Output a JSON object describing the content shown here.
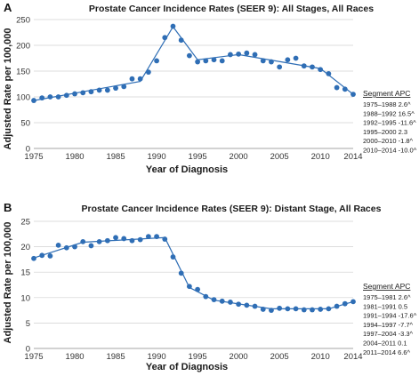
{
  "colors": {
    "series": "#2f6eb5",
    "grid": "#d0d0d0"
  },
  "chart_data": [
    {
      "type": "scatter",
      "panel_label": "A",
      "title": "Prostate Cancer Incidence Rates (SEER 9): All Stages, All Races",
      "xlabel": "Year of Diagnosis",
      "ylabel": "Adjusted Rate per 100,000",
      "xlim": [
        1975,
        2014
      ],
      "ylim": [
        0,
        250
      ],
      "xticks": [
        1975,
        1980,
        1985,
        1990,
        1995,
        2000,
        2005,
        2010,
        2014
      ],
      "yticks": [
        0,
        50,
        100,
        150,
        200,
        250
      ],
      "grid": true,
      "points": {
        "x": [
          1975,
          1976,
          1977,
          1978,
          1979,
          1980,
          1981,
          1982,
          1983,
          1984,
          1985,
          1986,
          1987,
          1988,
          1989,
          1990,
          1991,
          1992,
          1993,
          1994,
          1995,
          1996,
          1997,
          1998,
          1999,
          2000,
          2001,
          2002,
          2003,
          2004,
          2005,
          2006,
          2007,
          2008,
          2009,
          2010,
          2011,
          2012,
          2013,
          2014
        ],
        "y": [
          93,
          98,
          100,
          100,
          103,
          106,
          108,
          110,
          113,
          113,
          117,
          120,
          135,
          135,
          148,
          170,
          215,
          237,
          210,
          180,
          168,
          170,
          172,
          170,
          182,
          183,
          185,
          182,
          170,
          168,
          158,
          172,
          175,
          160,
          158,
          153,
          145,
          118,
          115,
          105
        ]
      },
      "trend": {
        "x": [
          1975,
          1988,
          1992,
          1995,
          2000,
          2010,
          2014
        ],
        "y": [
          93,
          130,
          236,
          172,
          182,
          155,
          105
        ]
      },
      "segment_apc": {
        "heading": "Segment APC",
        "rows": [
          "1975–1988 2.6^",
          "1988–1992 16.5^",
          "1992–1995 -11.6^",
          "1995–2000 2.3",
          "2000–2010 -1.8^",
          "2010–2014 -10.0^"
        ]
      }
    },
    {
      "type": "scatter",
      "panel_label": "B",
      "title": "Prostate Cancer Incidence Rates (SEER 9): Distant Stage, All Races",
      "xlabel": "Year of Diagnosis",
      "ylabel": "Adjusted Rate per 100,000",
      "xlim": [
        1975,
        2014
      ],
      "ylim": [
        0,
        25
      ],
      "xticks": [
        1975,
        1980,
        1985,
        1990,
        1995,
        2000,
        2005,
        2010,
        2014
      ],
      "yticks": [
        0,
        5,
        10,
        15,
        20,
        25
      ],
      "grid": true,
      "points": {
        "x": [
          1975,
          1976,
          1977,
          1978,
          1979,
          1980,
          1981,
          1982,
          1983,
          1984,
          1985,
          1986,
          1987,
          1988,
          1989,
          1990,
          1991,
          1992,
          1993,
          1994,
          1995,
          1996,
          1997,
          1998,
          1999,
          2000,
          2001,
          2002,
          2003,
          2004,
          2005,
          2006,
          2007,
          2008,
          2009,
          2010,
          2011,
          2012,
          2013,
          2014
        ],
        "y": [
          17.7,
          18.3,
          18.2,
          20.3,
          19.8,
          20.0,
          21.0,
          20.2,
          21.0,
          21.2,
          21.8,
          21.6,
          21.2,
          21.4,
          22.0,
          22.0,
          21.5,
          18.0,
          14.8,
          12.2,
          11.6,
          10.2,
          9.6,
          9.3,
          9.1,
          8.7,
          8.5,
          8.3,
          7.7,
          7.5,
          7.9,
          7.8,
          7.8,
          7.6,
          7.6,
          7.7,
          7.8,
          8.3,
          8.8,
          9.2
        ]
      },
      "trend": {
        "x": [
          1975,
          1981,
          1991,
          1994,
          1997,
          2004,
          2011,
          2014
        ],
        "y": [
          17.8,
          20.9,
          21.8,
          12.0,
          9.5,
          7.8,
          7.8,
          9.2
        ]
      },
      "segment_apc": {
        "heading": "Segment APC",
        "rows": [
          "1975–1981 2.6^",
          "1981–1991 0.5",
          "1991–1994 -17.6^",
          "1994–1997 -7.7^",
          "1997–2004 -3.3^",
          "2004–2011 0.1",
          "2011–2014 6.6^"
        ]
      }
    }
  ]
}
